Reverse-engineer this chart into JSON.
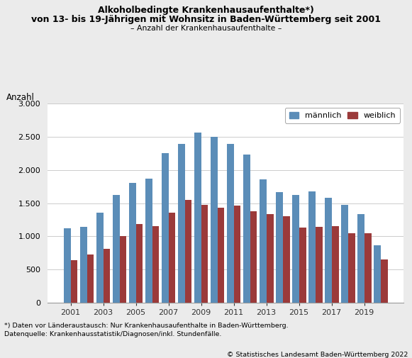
{
  "years": [
    2001,
    2002,
    2003,
    2004,
    2005,
    2006,
    2007,
    2008,
    2009,
    2010,
    2011,
    2012,
    2013,
    2014,
    2015,
    2016,
    2017,
    2018,
    2019,
    2020
  ],
  "maennlich": [
    1120,
    1145,
    1355,
    1620,
    1810,
    1870,
    2260,
    2390,
    2570,
    2500,
    2390,
    2230,
    1860,
    1670,
    1620,
    1680,
    1580,
    1470,
    1340,
    860
  ],
  "weiblich": [
    640,
    730,
    810,
    1000,
    1185,
    1155,
    1355,
    1550,
    1470,
    1430,
    1465,
    1380,
    1330,
    1300,
    1130,
    1145,
    1155,
    1045,
    1050,
    645
  ],
  "color_maennlich": "#5B8DB8",
  "color_weiblich": "#9B3A3A",
  "title_line1": "Alkoholbedingte Krankenhausaufenthalte*)",
  "title_line2": "von 13- bis 19-Jährigen mit Wohnsitz in Baden-Württemberg seit 2001",
  "subtitle": "– Anzahl der Krankenhausaufenthalte –",
  "ylabel": "Anzahl",
  "legend_maennlich": "männlich",
  "legend_weiblich": "weiblich",
  "ylim": [
    0,
    3000
  ],
  "yticks": [
    0,
    500,
    1000,
    1500,
    2000,
    2500,
    3000
  ],
  "ytick_labels": [
    "0",
    "500",
    "1.000",
    "1.500",
    "2.000",
    "2.500",
    "3.000"
  ],
  "footnote1": "*) Daten vor Länderaustausch: Nur Krankenhausaufenthalte in Baden-Württemberg.",
  "footnote2": "Datenquelle: Krankenhausstatistik/Diagnosen/inkl. Stundenfälle.",
  "copyright": "© Statistisches Landesamt Baden-Württemberg 2022",
  "background_color": "#EBEBEB",
  "plot_bg_color": "#FFFFFF",
  "grid_color": "#CCCCCC"
}
